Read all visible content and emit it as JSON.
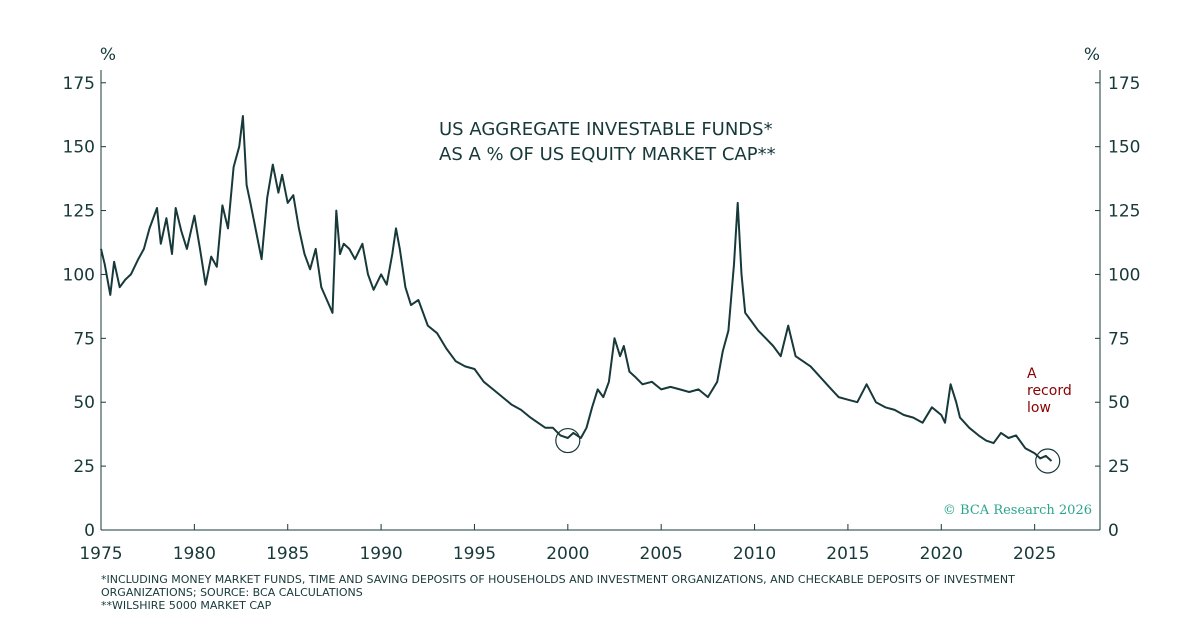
{
  "chart_data": {
    "type": "line",
    "title_lines": [
      "US AGGREGATE INVESTABLE FUNDS*",
      "AS A % OF US EQUITY MARKET CAP**"
    ],
    "left_unit": "%",
    "right_unit": "%",
    "xlim": [
      1975,
      2028.5
    ],
    "ylim": [
      0,
      180
    ],
    "x_ticks": [
      1975,
      1980,
      1985,
      1990,
      1995,
      2000,
      2005,
      2010,
      2015,
      2020,
      2025
    ],
    "y_ticks": [
      0,
      25,
      50,
      75,
      100,
      125,
      150,
      175
    ],
    "series": [
      {
        "name": "US aggregate investable funds as % of US equity market cap",
        "x": [
          1975.0,
          1975.2,
          1975.5,
          1975.7,
          1976.0,
          1976.3,
          1976.6,
          1977.0,
          1977.3,
          1977.6,
          1978.0,
          1978.2,
          1978.5,
          1978.8,
          1979.0,
          1979.3,
          1979.6,
          1980.0,
          1980.3,
          1980.6,
          1980.9,
          1981.2,
          1981.5,
          1981.8,
          1982.1,
          1982.4,
          1982.6,
          1982.8,
          1983.0,
          1983.3,
          1983.6,
          1983.9,
          1984.2,
          1984.5,
          1984.7,
          1985.0,
          1985.3,
          1985.6,
          1985.9,
          1986.2,
          1986.5,
          1986.8,
          1987.1,
          1987.4,
          1987.6,
          1987.8,
          1988.0,
          1988.3,
          1988.6,
          1989.0,
          1989.3,
          1989.6,
          1990.0,
          1990.3,
          1990.6,
          1990.8,
          1991.0,
          1991.3,
          1991.6,
          1992.0,
          1992.5,
          1993.0,
          1993.5,
          1994.0,
          1994.5,
          1995.0,
          1995.5,
          1996.0,
          1996.5,
          1997.0,
          1997.5,
          1998.0,
          1998.4,
          1998.8,
          1999.2,
          1999.6,
          2000.0,
          2000.3,
          2000.7,
          2001.0,
          2001.3,
          2001.6,
          2001.9,
          2002.2,
          2002.5,
          2002.8,
          2003.0,
          2003.3,
          2003.6,
          2004.0,
          2004.5,
          2005.0,
          2005.5,
          2006.0,
          2006.5,
          2007.0,
          2007.5,
          2008.0,
          2008.3,
          2008.6,
          2008.9,
          2009.1,
          2009.3,
          2009.5,
          2009.8,
          2010.2,
          2010.6,
          2011.0,
          2011.4,
          2011.8,
          2012.2,
          2012.6,
          2013.0,
          2013.5,
          2014.0,
          2014.5,
          2015.0,
          2015.5,
          2016.0,
          2016.5,
          2017.0,
          2017.5,
          2018.0,
          2018.5,
          2019.0,
          2019.5,
          2020.0,
          2020.2,
          2020.5,
          2020.8,
          2021.0,
          2021.5,
          2022.0,
          2022.4,
          2022.8,
          2023.2,
          2023.6,
          2024.0,
          2024.5,
          2025.0,
          2025.3,
          2025.6,
          2025.9
        ],
        "values": [
          110,
          104,
          92,
          105,
          95,
          98,
          100,
          106,
          110,
          118,
          126,
          112,
          122,
          108,
          126,
          117,
          110,
          123,
          110,
          96,
          107,
          103,
          127,
          118,
          142,
          150,
          162,
          135,
          128,
          117,
          106,
          130,
          143,
          132,
          139,
          128,
          131,
          118,
          108,
          102,
          110,
          95,
          90,
          85,
          125,
          108,
          112,
          110,
          106,
          112,
          100,
          94,
          100,
          96,
          108,
          118,
          110,
          95,
          88,
          90,
          80,
          77,
          71,
          66,
          64,
          63,
          58,
          55,
          52,
          49,
          47,
          44,
          42,
          40,
          40,
          37,
          36,
          38,
          36,
          40,
          48,
          55,
          52,
          58,
          75,
          68,
          72,
          62,
          60,
          57,
          58,
          55,
          56,
          55,
          54,
          55,
          52,
          58,
          70,
          78,
          104,
          128,
          100,
          85,
          82,
          78,
          75,
          72,
          68,
          80,
          68,
          66,
          64,
          60,
          56,
          52,
          51,
          50,
          57,
          50,
          48,
          47,
          45,
          44,
          42,
          48,
          45,
          42,
          57,
          50,
          44,
          40,
          37,
          35,
          34,
          38,
          36,
          37,
          32,
          30,
          28,
          29,
          27
        ]
      }
    ],
    "annotations": [
      {
        "label_lines": [
          "A",
          "record",
          "low"
        ],
        "at_x": 2025.7,
        "at_y": 27
      }
    ],
    "highlights": [
      {
        "at_x": 2000.0,
        "at_y": 35
      },
      {
        "at_x": 2025.7,
        "at_y": 27
      }
    ],
    "credit": "© BCA Research 2026"
  },
  "footnotes": [
    "*INCLUDING MONEY MARKET FUNDS, TIME AND SAVING DEPOSITS OF HOUSEHOLDS AND INVESTMENT ORGANIZATIONS, AND CHECKABLE DEPOSITS OF INVESTMENT",
    "ORGANIZATIONS; SOURCE: BCA CALCULATIONS",
    "**WILSHIRE 5000 MARKET CAP"
  ],
  "colors": {
    "line": "#17393a",
    "annotation": "#8b0000",
    "credit": "#2aa58c"
  }
}
